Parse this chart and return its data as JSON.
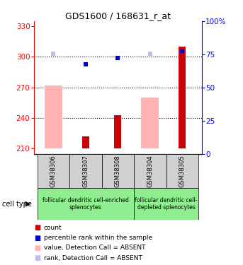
{
  "title": "GDS1600 / 168631_r_at",
  "samples": [
    "GSM38306",
    "GSM38307",
    "GSM38308",
    "GSM38304",
    "GSM38305"
  ],
  "ylim_left": [
    205,
    335
  ],
  "ylim_right": [
    0,
    100
  ],
  "yticks_left": [
    210,
    240,
    270,
    300,
    330
  ],
  "yticks_right": [
    0,
    25,
    50,
    75,
    100
  ],
  "ytick_labels_right": [
    "0",
    "25",
    "50",
    "75",
    "100%"
  ],
  "red_bars": [
    null,
    222,
    243,
    null,
    310
  ],
  "pink_bars": [
    272,
    null,
    null,
    260,
    null
  ],
  "blue_squares": [
    null,
    293,
    299,
    null,
    306
  ],
  "light_blue_squares": [
    303,
    null,
    null,
    303,
    null
  ],
  "bar_bottom": 210,
  "group1_label": "follicular dendritic cell-enriched\nsplenocytes",
  "group2_label": "follicular dendritic cell-\ndepleted splenocytes",
  "cell_type_label": "cell type",
  "legend_items": [
    {
      "color": "#cc0000",
      "label": "count"
    },
    {
      "color": "#0000cc",
      "label": "percentile rank within the sample"
    },
    {
      "color": "#ffb3b3",
      "label": "value, Detection Call = ABSENT"
    },
    {
      "color": "#bbbbee",
      "label": "rank, Detection Call = ABSENT"
    }
  ],
  "group1_color": "#90ee90",
  "group2_color": "#90ee90",
  "sample_box_color": "#d0d0d0",
  "red_color": "#cc0000",
  "pink_color": "#ffb3b3",
  "blue_color": "#0000cc",
  "light_blue_color": "#bbbbee",
  "bg_color": "#ffffff"
}
